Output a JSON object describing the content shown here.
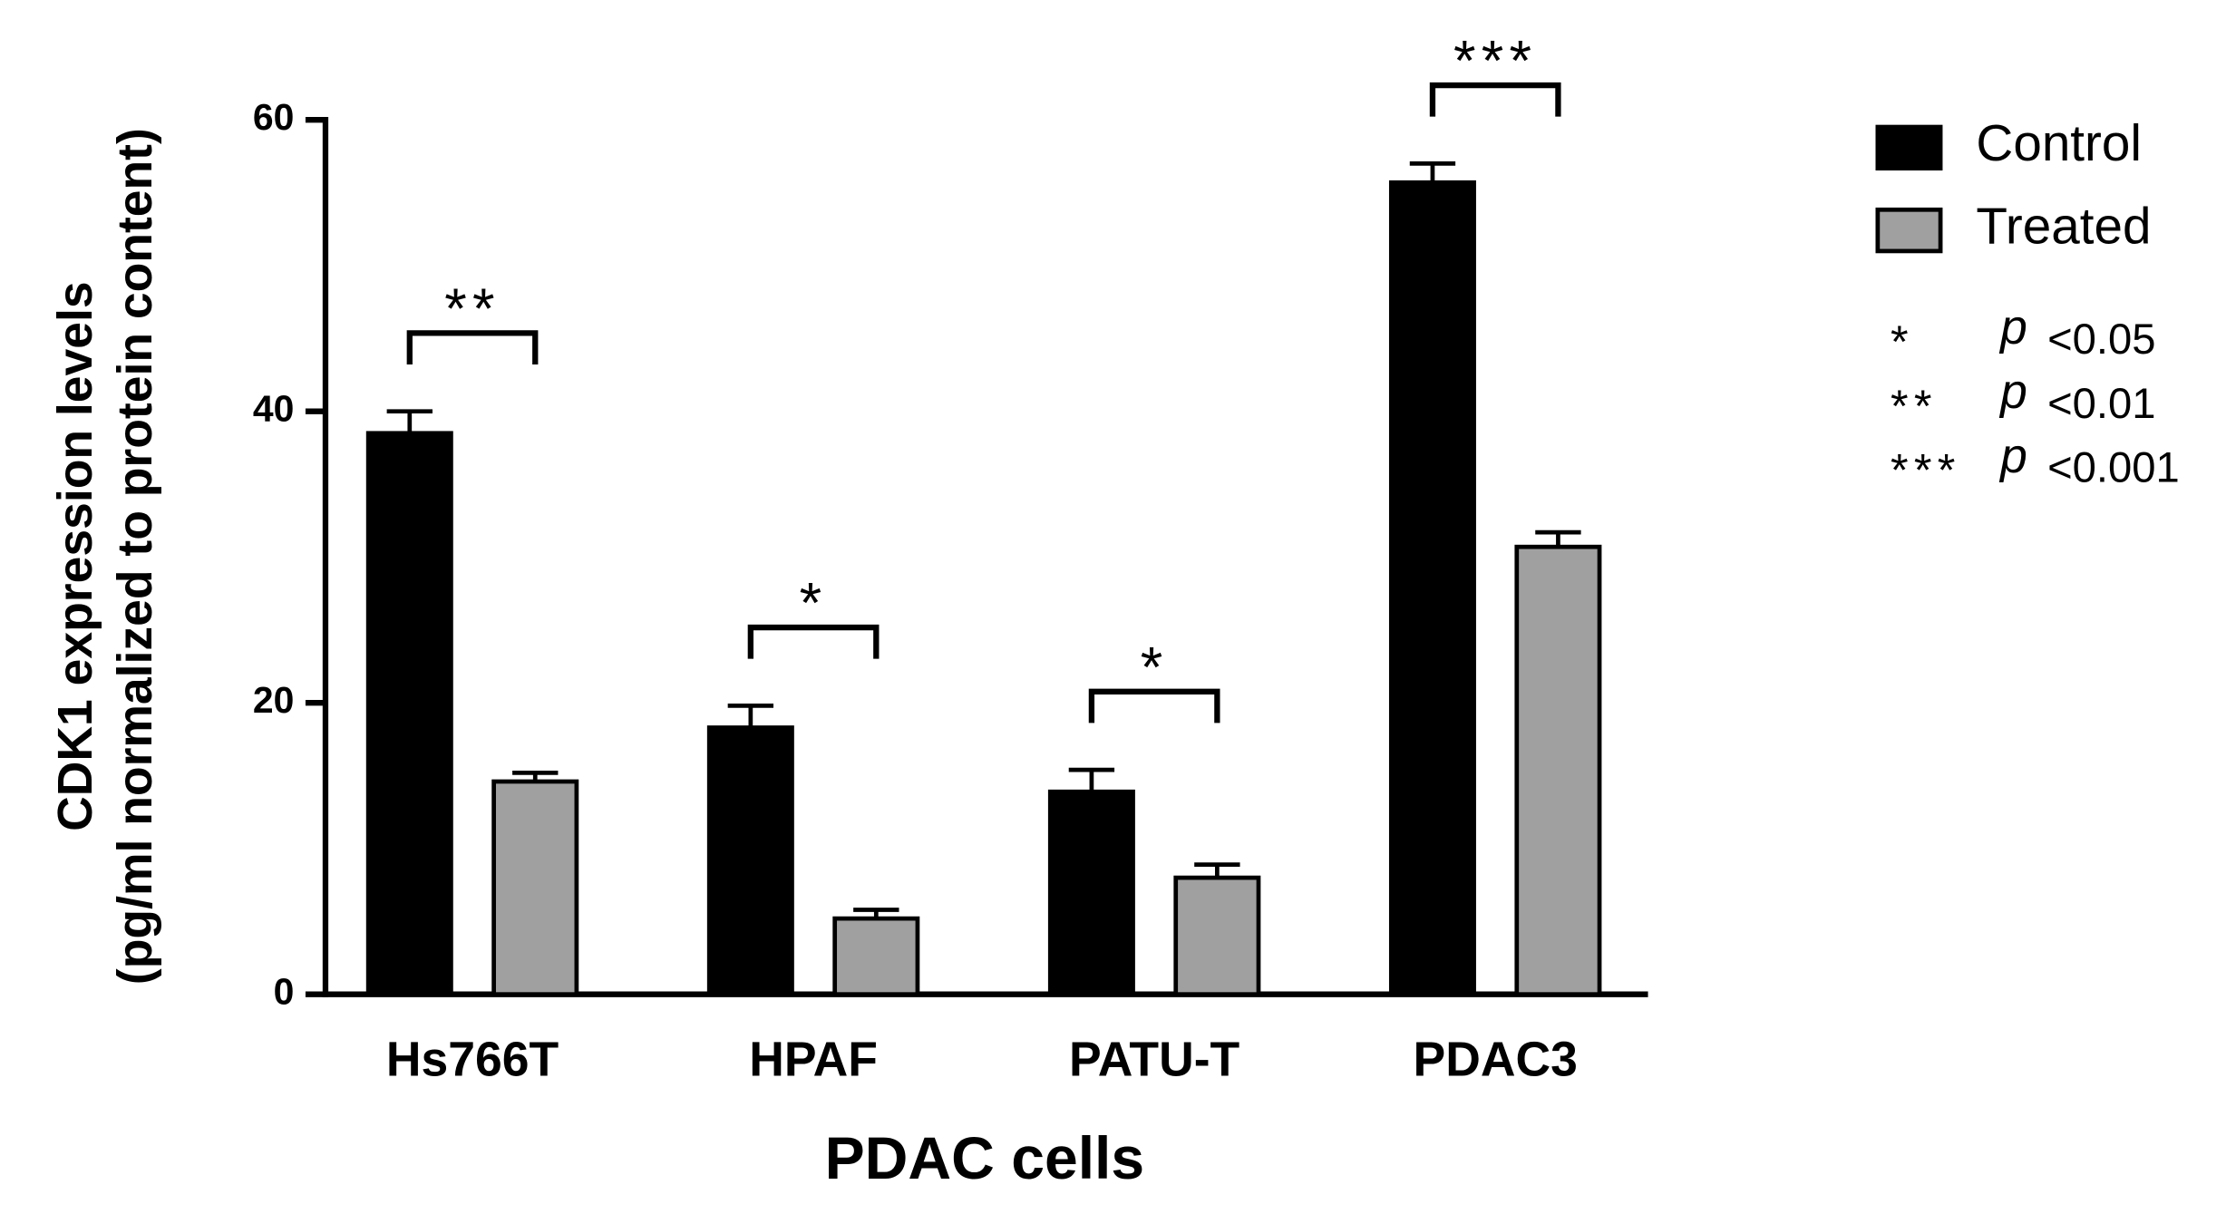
{
  "chart_data": {
    "type": "bar",
    "y_label": [
      "CDK1 expression levels",
      "(pg/ml normalized to protein content)"
    ],
    "x_label": "PDAC cells",
    "categories": [
      "Hs766T",
      "HPAF",
      "PATU-T",
      "PDAC3"
    ],
    "series": [
      {
        "name": "Control",
        "color": "#000000",
        "values": [
          38.5,
          18.3,
          13.9,
          55.7
        ],
        "errors": [
          1.5,
          1.5,
          1.5,
          1.3
        ]
      },
      {
        "name": "Treated",
        "color": "#a0a0a0",
        "values": [
          14.6,
          5.2,
          8.0,
          30.7
        ],
        "errors": [
          0.6,
          0.6,
          0.9,
          1.0
        ]
      }
    ],
    "significance": [
      "**",
      "*",
      "*",
      "***"
    ],
    "significance_key": [
      {
        "stars": "*",
        "p": "p",
        "threshold": "<0.05"
      },
      {
        "stars": "**",
        "p": "p",
        "threshold": "<0.01"
      },
      {
        "stars": "***",
        "p": "p",
        "threshold": "<0.001"
      }
    ],
    "ylim": [
      0,
      60
    ],
    "yticks": [
      0,
      20,
      40,
      60
    ]
  }
}
